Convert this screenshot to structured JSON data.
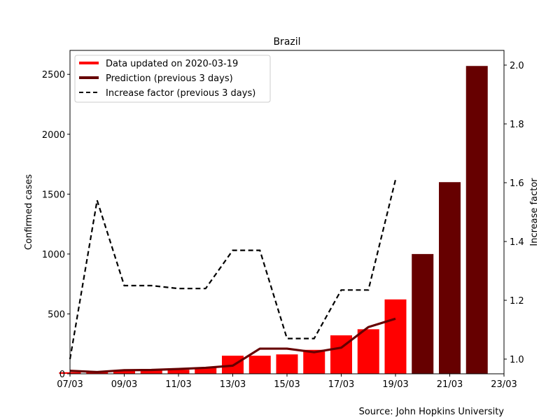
{
  "chart_data": {
    "title": "Brazil",
    "type": "bar+line",
    "source": "Source: John Hopkins University",
    "xlim": [
      "07/03",
      "23/03"
    ],
    "x_ticks": [
      "07/03",
      "09/03",
      "11/03",
      "13/03",
      "15/03",
      "17/03",
      "19/03",
      "21/03",
      "23/03"
    ],
    "y_left": {
      "label": "Confirmed cases",
      "lim": [
        0,
        2700
      ],
      "ticks": [
        0,
        500,
        1000,
        1500,
        2000,
        2500
      ]
    },
    "y_right": {
      "label": "Increase factor",
      "lim": [
        0.95,
        2.05
      ],
      "ticks": [
        "1.0",
        "1.2",
        "1.4",
        "1.6",
        "1.8",
        "2.0"
      ]
    },
    "legend": {
      "placement": "top-left",
      "entries": [
        {
          "label": "Data updated on 2020-03-19",
          "style": "red-thick"
        },
        {
          "label": "Prediction (previous 3 days)",
          "style": "darkred-thick"
        },
        {
          "label": "Increase factor (previous 3 days)",
          "style": "black-dashed"
        }
      ]
    },
    "colors": {
      "data": "#ff0000",
      "prediction": "#660000",
      "factor": "#000000"
    },
    "series": [
      {
        "name": "Data updated on 2020-03-19",
        "kind": "bar",
        "dates": [
          "07/03",
          "08/03",
          "09/03",
          "10/03",
          "11/03",
          "12/03",
          "13/03",
          "14/03",
          "15/03",
          "16/03",
          "17/03",
          "18/03",
          "19/03"
        ],
        "values": [
          13,
          20,
          25,
          30,
          34,
          52,
          151,
          151,
          162,
          200,
          321,
          372,
          621
        ]
      },
      {
        "name": "Prediction (previous 3 days)",
        "kind": "bar",
        "dates": [
          "20/03",
          "21/03",
          "22/03"
        ],
        "values": [
          1000,
          1600,
          2570
        ]
      },
      {
        "name": "Prediction (previous 3 days)",
        "kind": "line",
        "dates": [
          "07/03",
          "08/03",
          "09/03",
          "10/03",
          "11/03",
          "12/03",
          "13/03",
          "14/03",
          "15/03",
          "16/03",
          "17/03",
          "18/03",
          "19/03"
        ],
        "values": [
          25,
          15,
          30,
          32,
          40,
          50,
          68,
          210,
          210,
          180,
          218,
          390,
          460
        ]
      },
      {
        "name": "Increase factor (previous 3 days)",
        "kind": "line",
        "axis": "right",
        "dates": [
          "07/03",
          "08/03",
          "09/03",
          "10/03",
          "11/03",
          "12/03",
          "13/03",
          "14/03",
          "15/03",
          "16/03",
          "17/03",
          "18/03",
          "19/03"
        ],
        "values": [
          1.0,
          1.54,
          1.25,
          1.25,
          1.24,
          1.24,
          1.37,
          1.37,
          1.07,
          1.07,
          1.235,
          1.235,
          1.61
        ]
      }
    ]
  }
}
